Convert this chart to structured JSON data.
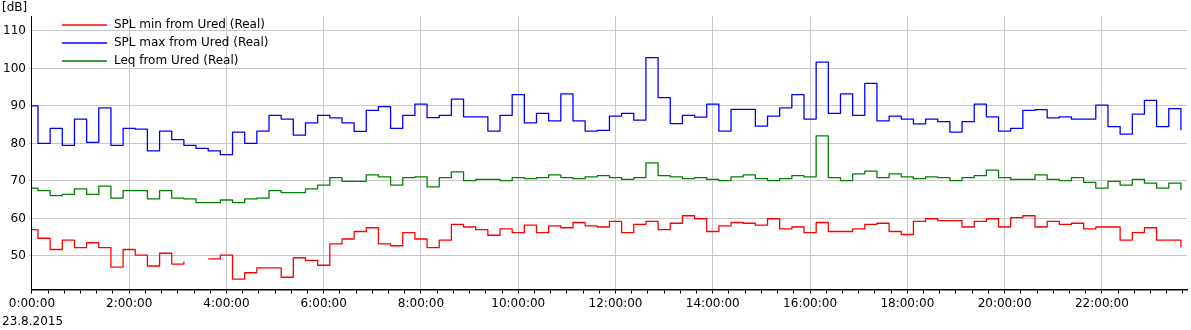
{
  "chart_data": {
    "type": "step",
    "ylabel": "[dB]",
    "annotations": [
      "23.8.2015"
    ],
    "x": [
      0,
      0.125,
      0.375,
      0.625,
      0.875,
      1.125,
      1.375,
      1.625,
      1.875,
      2.125,
      2.375,
      2.625,
      2.875,
      3.125,
      3.375,
      3.625,
      3.875,
      4.125,
      4.375,
      4.625,
      4.875,
      5.125,
      5.375,
      5.625,
      5.875,
      6.125,
      6.375,
      6.625,
      6.875,
      7.125,
      7.375,
      7.625,
      7.875,
      8.125,
      8.375,
      8.625,
      8.875,
      9.125,
      9.375,
      9.625,
      9.875,
      10.125,
      10.375,
      10.625,
      10.875,
      11.125,
      11.375,
      11.625,
      11.875,
      12.125,
      12.375,
      12.625,
      12.875,
      13.125,
      13.375,
      13.625,
      13.875,
      14.125,
      14.375,
      14.625,
      14.875,
      15.125,
      15.375,
      15.625,
      15.875,
      16.125,
      16.375,
      16.625,
      16.875,
      17.125,
      17.375,
      17.625,
      17.875,
      18.125,
      18.375,
      18.625,
      18.875,
      19.125,
      19.375,
      19.625,
      19.875,
      20.125,
      20.375,
      20.625,
      20.875,
      21.125,
      21.375,
      21.625,
      21.875,
      22.125,
      22.375,
      22.625,
      22.875,
      23.125,
      23.375,
      23.625
    ],
    "series": [
      {
        "name": "SPL min from Ured (Real)",
        "color": "#ff0000",
        "values": [
          57,
          54.7,
          51.7,
          54.2,
          52.2,
          53.5,
          52.2,
          47.0,
          51.7,
          50.2,
          47.3,
          50.7,
          47.8,
          48.5,
          null,
          49.2,
          50.2,
          43.8,
          45.5,
          46.8,
          46.8,
          44.3,
          49.5,
          48.8,
          47.5,
          53.2,
          54.5,
          56.5,
          57.5,
          53.2,
          52.7,
          56.2,
          54.5,
          52.2,
          54.2,
          58.4,
          57.7,
          57.0,
          55.5,
          57.2,
          56.2,
          58.2,
          56.2,
          58.0,
          57.5,
          58.9,
          58.0,
          57.7,
          59.2,
          56.2,
          58.4,
          59.2,
          57.0,
          58.7,
          60.7,
          59.9,
          56.5,
          58.0,
          58.9,
          58.7,
          58.2,
          59.9,
          57.2,
          57.7,
          56.2,
          58.9,
          56.5,
          56.5,
          57.2,
          58.4,
          58.7,
          56.5,
          55.7,
          59.2,
          59.9,
          59.4,
          59.4,
          57.7,
          59.2,
          59.9,
          57.7,
          60.2,
          60.7,
          57.7,
          59.2,
          58.4,
          58.7,
          57.2,
          57.7,
          57.7,
          54.2,
          56.2,
          57.5,
          54.2,
          54.2,
          52.2
        ]
      },
      {
        "name": "SPL max from Ured (Real)",
        "color": "#0000ff",
        "values": [
          90,
          80,
          84,
          79.5,
          86.5,
          80.3,
          89.5,
          79.5,
          84,
          83.8,
          78,
          83.3,
          81,
          79.5,
          78.7,
          78,
          77,
          83,
          80,
          83.3,
          87.5,
          86.5,
          82.2,
          85.5,
          87.5,
          86.8,
          85.5,
          83.2,
          88.8,
          89.8,
          84,
          87.5,
          90.5,
          86.9,
          87.5,
          91.8,
          87.1,
          87.1,
          83.3,
          87.5,
          93.0,
          85.5,
          88.0,
          86.0,
          93.2,
          86.0,
          83.3,
          83.5,
          87.3,
          88.0,
          86.2,
          102.9,
          92.2,
          85.3,
          87.5,
          87.0,
          90.5,
          83.3,
          89.1,
          89.1,
          84.6,
          87.3,
          89.5,
          93.0,
          86.5,
          101.7,
          88.0,
          93.2,
          87.5,
          96.0,
          86.0,
          87.3,
          86.5,
          85.2,
          86.5,
          85.8,
          83.0,
          85.8,
          90.5,
          87.1,
          83.3,
          84.0,
          88.8,
          89.0,
          86.8,
          87.1,
          86.5,
          86.5,
          90.2,
          84.5,
          82.5,
          87.8,
          91.5,
          84.5,
          89.3,
          83.5
        ]
      },
      {
        "name": "Leq from Ured (Real)",
        "color": "#008000",
        "values": [
          68.1,
          67.4,
          66.1,
          66.4,
          67.9,
          66.4,
          68.6,
          65.4,
          67.4,
          67.4,
          65.2,
          67.4,
          65.4,
          65.2,
          64.2,
          64.2,
          64.9,
          64.2,
          65.2,
          65.4,
          67.4,
          66.9,
          66.9,
          67.9,
          68.9,
          70.9,
          69.9,
          69.9,
          71.6,
          71.1,
          68.9,
          70.9,
          71.1,
          68.4,
          70.9,
          72.4,
          70.1,
          70.4,
          70.4,
          70.1,
          70.9,
          70.6,
          70.9,
          71.6,
          70.9,
          70.6,
          71.1,
          71.4,
          70.9,
          70.4,
          70.9,
          74.8,
          71.4,
          71.1,
          70.6,
          70.9,
          70.4,
          70.1,
          71.1,
          71.6,
          70.6,
          70.1,
          70.6,
          71.4,
          71.1,
          82.0,
          70.9,
          70.1,
          71.9,
          72.6,
          70.9,
          71.9,
          71.1,
          70.6,
          71.1,
          70.9,
          70.1,
          70.9,
          71.4,
          72.9,
          70.9,
          70.4,
          70.4,
          71.6,
          70.4,
          70.1,
          70.9,
          69.6,
          68.1,
          69.9,
          68.9,
          70.4,
          69.4,
          68.1,
          69.4,
          67.6
        ]
      }
    ],
    "xlim": [
      0,
      23.75
    ],
    "ylim": [
      41,
      114
    ],
    "xticks": [
      {
        "value": 0,
        "label": "0:00:00"
      },
      {
        "value": 0.333,
        "label": null
      },
      {
        "value": 0.667,
        "label": null
      },
      {
        "value": 1,
        "label": null
      },
      {
        "value": 1.333,
        "label": null
      },
      {
        "value": 1.667,
        "label": null
      },
      {
        "value": 2,
        "label": "2:00:00"
      },
      {
        "value": 2.333,
        "label": null
      },
      {
        "value": 2.667,
        "label": null
      },
      {
        "value": 3,
        "label": null
      },
      {
        "value": 3.333,
        "label": null
      },
      {
        "value": 3.667,
        "label": null
      },
      {
        "value": 4,
        "label": "4:00:00"
      },
      {
        "value": 4.333,
        "label": null
      },
      {
        "value": 4.667,
        "label": null
      },
      {
        "value": 5,
        "label": null
      },
      {
        "value": 5.333,
        "label": null
      },
      {
        "value": 5.667,
        "label": null
      },
      {
        "value": 6,
        "label": "6:00:00"
      },
      {
        "value": 6.333,
        "label": null
      },
      {
        "value": 6.667,
        "label": null
      },
      {
        "value": 7,
        "label": null
      },
      {
        "value": 7.333,
        "label": null
      },
      {
        "value": 7.667,
        "label": null
      },
      {
        "value": 8,
        "label": "8:00:00"
      },
      {
        "value": 8.333,
        "label": null
      },
      {
        "value": 8.667,
        "label": null
      },
      {
        "value": 9,
        "label": null
      },
      {
        "value": 9.333,
        "label": null
      },
      {
        "value": 9.667,
        "label": null
      },
      {
        "value": 10,
        "label": "10:00:00"
      },
      {
        "value": 10.333,
        "label": null
      },
      {
        "value": 10.667,
        "label": null
      },
      {
        "value": 11,
        "label": null
      },
      {
        "value": 11.333,
        "label": null
      },
      {
        "value": 11.667,
        "label": null
      },
      {
        "value": 12,
        "label": "12:00:00"
      },
      {
        "value": 12.333,
        "label": null
      },
      {
        "value": 12.667,
        "label": null
      },
      {
        "value": 13,
        "label": null
      },
      {
        "value": 13.333,
        "label": null
      },
      {
        "value": 13.667,
        "label": null
      },
      {
        "value": 14,
        "label": "14:00:00"
      },
      {
        "value": 14.333,
        "label": null
      },
      {
        "value": 14.667,
        "label": null
      },
      {
        "value": 15,
        "label": null
      },
      {
        "value": 15.333,
        "label": null
      },
      {
        "value": 15.667,
        "label": null
      },
      {
        "value": 16,
        "label": "16:00:00"
      },
      {
        "value": 16.333,
        "label": null
      },
      {
        "value": 16.667,
        "label": null
      },
      {
        "value": 17,
        "label": null
      },
      {
        "value": 17.333,
        "label": null
      },
      {
        "value": 17.667,
        "label": null
      },
      {
        "value": 18,
        "label": "18:00:00"
      },
      {
        "value": 18.333,
        "label": null
      },
      {
        "value": 18.667,
        "label": null
      },
      {
        "value": 19,
        "label": null
      },
      {
        "value": 19.333,
        "label": null
      },
      {
        "value": 19.667,
        "label": null
      },
      {
        "value": 20,
        "label": "20:00:00"
      },
      {
        "value": 20.333,
        "label": null
      },
      {
        "value": 20.667,
        "label": null
      },
      {
        "value": 21,
        "label": null
      },
      {
        "value": 21.333,
        "label": null
      },
      {
        "value": 21.667,
        "label": null
      },
      {
        "value": 22,
        "label": "22:00:00"
      },
      {
        "value": 22.333,
        "label": null
      },
      {
        "value": 22.667,
        "label": null
      },
      {
        "value": 23,
        "label": null
      },
      {
        "value": 23.333,
        "label": null
      },
      {
        "value": 23.667,
        "label": null
      }
    ],
    "yticks": [
      50,
      60,
      70,
      80,
      90,
      100,
      110
    ],
    "grid": true,
    "legend": "top left",
    "line_style": "solid"
  }
}
